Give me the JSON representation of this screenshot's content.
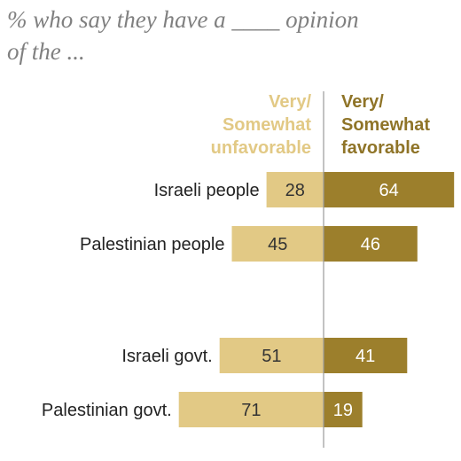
{
  "chart_data": {
    "type": "bar",
    "orientation": "diverging-horizontal",
    "subtitle_lines": [
      "% who say they have a ____ opinion",
      "of the ..."
    ],
    "categories": [
      "Israeli people",
      "Palestinian people",
      "Israeli govt.",
      "Palestinian govt."
    ],
    "groups": [
      [
        0,
        1
      ],
      [
        2,
        3
      ]
    ],
    "series": [
      {
        "name_lines": [
          "Very/",
          "Somewhat",
          "unfavorable"
        ],
        "side": "left",
        "color": "#e2c985",
        "label_color": "#333333",
        "values": [
          28,
          45,
          51,
          71
        ]
      },
      {
        "name_lines": [
          "Very/",
          "Somewhat",
          "favorable"
        ],
        "side": "right",
        "color": "#9c7f2c",
        "label_color": "#ffffff",
        "values": [
          64,
          46,
          41,
          19
        ]
      }
    ],
    "header_colors": [
      "#e2c985",
      "#8f7428"
    ],
    "axis_line_color": "#9a9a9a",
    "grid": false,
    "legend": "column headers above bars"
  }
}
